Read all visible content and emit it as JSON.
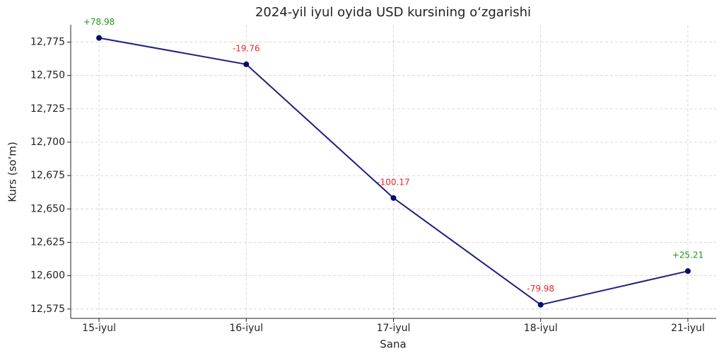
{
  "chart_data": {
    "type": "line",
    "title": "2024-yil iyul oyida USD kursining o‘zgarishi",
    "x_label": "Sana",
    "y_label": "Kurs (so‘m)",
    "categories": [
      "15-iyul",
      "16-iyul",
      "17-iyul",
      "18-iyul",
      "21-iyul"
    ],
    "series": [
      {
        "name": "USD",
        "color": "#1f1f7f",
        "values": [
          12778.13,
          12758.37,
          12658.2,
          12578.22,
          12603.43
        ]
      }
    ],
    "annotations": [
      "+78.98",
      "-19.76",
      "-100.17",
      "-79.98",
      "+25.21"
    ],
    "annotation_colors": [
      "#1a9a1a",
      "#e8262a",
      "#e8262a",
      "#e8262a",
      "#1a9a1a"
    ],
    "ylim": [
      12568,
      12788
    ],
    "yticks": [
      {
        "value": 12575,
        "label": "12,575"
      },
      {
        "value": 12600,
        "label": "12,600"
      },
      {
        "value": 12625,
        "label": "12,625"
      },
      {
        "value": 12650,
        "label": "12,650"
      },
      {
        "value": 12675,
        "label": "12,675"
      },
      {
        "value": 12700,
        "label": "12,700"
      },
      {
        "value": 12725,
        "label": "12,725"
      },
      {
        "value": 12750,
        "label": "12,750"
      },
      {
        "value": 12775,
        "label": "12,775"
      }
    ],
    "grid": true
  }
}
